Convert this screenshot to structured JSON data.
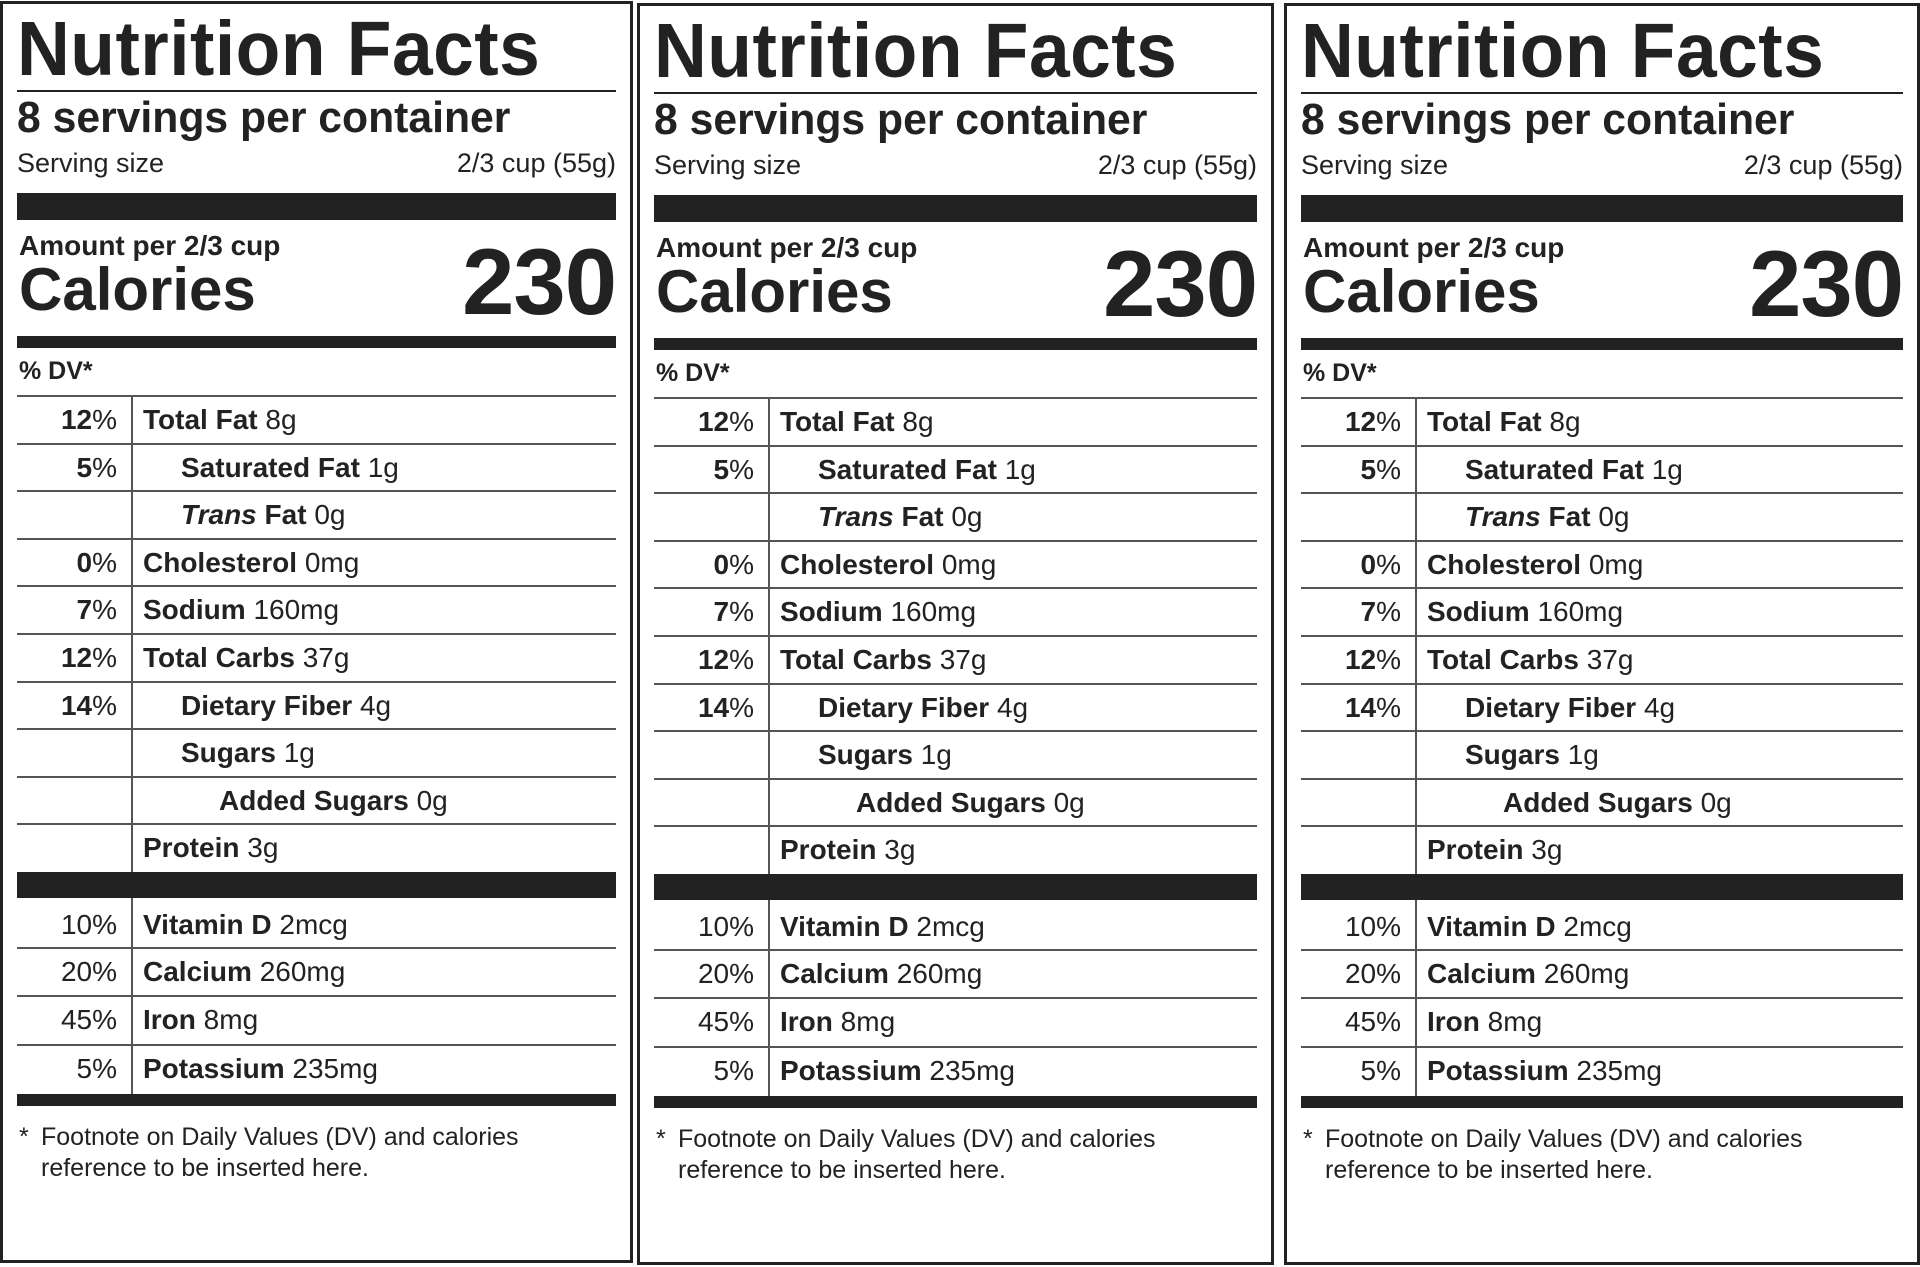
{
  "labels": [
    {
      "title": "Nutrition Facts",
      "servings_per_container": "8 servings per container",
      "serving_size_label": "Serving size",
      "serving_size_value": "2/3 cup (55g)",
      "amount_per": "Amount per 2/3 cup",
      "calories_label": "Calories",
      "calories_value": "230",
      "dv_header": "% DV*",
      "nutrients": [
        {
          "pct": "12",
          "pct_sign": "%",
          "pct_bold": true,
          "name": "Total Fat",
          "amount": "8g",
          "indent": 0
        },
        {
          "pct": "5",
          "pct_sign": "%",
          "pct_bold": true,
          "name": "Saturated Fat",
          "amount": "1g",
          "indent": 1
        },
        {
          "pct": "",
          "pct_sign": "",
          "pct_bold": true,
          "name_italic": "Trans",
          "name": "Fat",
          "amount": "0g",
          "indent": 1
        },
        {
          "pct": "0",
          "pct_sign": "%",
          "pct_bold": true,
          "name": "Cholesterol",
          "amount": "0mg",
          "indent": 0
        },
        {
          "pct": "7",
          "pct_sign": "%",
          "pct_bold": true,
          "name": "Sodium",
          "amount": "160mg",
          "indent": 0
        },
        {
          "pct": "12",
          "pct_sign": "%",
          "pct_bold": true,
          "name": "Total Carbs",
          "amount": "37g",
          "indent": 0
        },
        {
          "pct": "14",
          "pct_sign": "%",
          "pct_bold": true,
          "name": "Dietary Fiber",
          "amount": "4g",
          "indent": 1
        },
        {
          "pct": "",
          "pct_sign": "",
          "pct_bold": true,
          "name": "Sugars",
          "amount": "1g",
          "indent": 1
        },
        {
          "pct": "",
          "pct_sign": "",
          "pct_bold": true,
          "name": "Added Sugars",
          "amount": "0g",
          "indent": 2
        },
        {
          "pct": "",
          "pct_sign": "",
          "pct_bold": true,
          "name": "Protein",
          "amount": "3g",
          "indent": 0
        }
      ],
      "vitamins": [
        {
          "pct": "10%",
          "name": "Vitamin D",
          "amount": "2mcg"
        },
        {
          "pct": "20%",
          "name": "Calcium",
          "amount": "260mg"
        },
        {
          "pct": "45%",
          "name": "Iron",
          "amount": "8mg"
        },
        {
          "pct": "5%",
          "name": "Potassium",
          "amount": "235mg"
        }
      ],
      "footnote_marker": "*",
      "footnote": "Footnote on Daily Values (DV) and calories reference to be inserted here."
    },
    {
      "title": "Nutrition Facts",
      "servings_per_container": "8 servings per container",
      "serving_size_label": "Serving size",
      "serving_size_value": "2/3 cup (55g)",
      "amount_per": "Amount per 2/3 cup",
      "calories_label": "Calories",
      "calories_value": "230",
      "dv_header": "% DV*",
      "nutrients": [
        {
          "pct": "12",
          "pct_sign": "%",
          "name": "Total Fat",
          "amount": "8g",
          "indent": 0
        },
        {
          "pct": "5",
          "pct_sign": "%",
          "name": "Saturated Fat",
          "amount": "1g",
          "indent": 1
        },
        {
          "pct": "",
          "pct_sign": "",
          "name_italic": "Trans",
          "name": "Fat",
          "amount": "0g",
          "indent": 1
        },
        {
          "pct": "0",
          "pct_sign": "%",
          "name": "Cholesterol",
          "amount": "0mg",
          "indent": 0
        },
        {
          "pct": "7",
          "pct_sign": "%",
          "name": "Sodium",
          "amount": "160mg",
          "indent": 0
        },
        {
          "pct": "12",
          "pct_sign": "%",
          "name": "Total Carbs",
          "amount": "37g",
          "indent": 0
        },
        {
          "pct": "14",
          "pct_sign": "%",
          "name": "Dietary Fiber",
          "amount": "4g",
          "indent": 1
        },
        {
          "pct": "",
          "pct_sign": "",
          "name": "Sugars",
          "amount": "1g",
          "indent": 1
        },
        {
          "pct": "",
          "pct_sign": "",
          "name": "Added Sugars",
          "amount": "0g",
          "indent": 2
        },
        {
          "pct": "",
          "pct_sign": "",
          "name": "Protein",
          "amount": "3g",
          "indent": 0
        }
      ],
      "vitamins": [
        {
          "pct": "10%",
          "name": "Vitamin D",
          "amount": "2mcg"
        },
        {
          "pct": "20%",
          "name": "Calcium",
          "amount": "260mg"
        },
        {
          "pct": "45%",
          "name": "Iron",
          "amount": "8mg"
        },
        {
          "pct": "5%",
          "name": "Potassium",
          "amount": "235mg"
        }
      ],
      "footnote_marker": "*",
      "footnote": "Footnote on Daily Values (DV) and calories reference to be inserted here."
    },
    {
      "title": "Nutrition Facts",
      "servings_per_container": "8 servings per container",
      "serving_size_label": "Serving size",
      "serving_size_value": "2/3 cup (55g)",
      "amount_per": "Amount per 2/3 cup",
      "calories_label": "Calories",
      "calories_value": "230",
      "dv_header": "% DV*",
      "nutrients": [
        {
          "pct": "12",
          "pct_sign": "%",
          "name": "Total Fat",
          "amount": "8g",
          "indent": 0
        },
        {
          "pct": "5",
          "pct_sign": "%",
          "name": "Saturated Fat",
          "amount": "1g",
          "indent": 1
        },
        {
          "pct": "",
          "pct_sign": "",
          "name_italic": "Trans",
          "name": "Fat",
          "amount": "0g",
          "indent": 1
        },
        {
          "pct": "0",
          "pct_sign": "%",
          "name": "Cholesterol",
          "amount": "0mg",
          "indent": 0
        },
        {
          "pct": "7",
          "pct_sign": "%",
          "name": "Sodium",
          "amount": "160mg",
          "indent": 0
        },
        {
          "pct": "12",
          "pct_sign": "%",
          "name": "Total Carbs",
          "amount": "37g",
          "indent": 0
        },
        {
          "pct": "14",
          "pct_sign": "%",
          "name": "Dietary Fiber",
          "amount": "4g",
          "indent": 1
        },
        {
          "pct": "",
          "pct_sign": "",
          "name": "Sugars",
          "amount": "1g",
          "indent": 1
        },
        {
          "pct": "",
          "pct_sign": "",
          "name": "Added Sugars",
          "amount": "0g",
          "indent": 2
        },
        {
          "pct": "",
          "pct_sign": "",
          "name": "Protein",
          "amount": "3g",
          "indent": 0
        }
      ],
      "vitamins": [
        {
          "pct": "10%",
          "name": "Vitamin D",
          "amount": "2mcg"
        },
        {
          "pct": "20%",
          "name": "Calcium",
          "amount": "260mg"
        },
        {
          "pct": "45%",
          "name": "Iron",
          "amount": "8mg"
        },
        {
          "pct": "5%",
          "name": "Potassium",
          "amount": "235mg"
        }
      ],
      "footnote_marker": "*",
      "footnote": "Footnote on Daily Values (DV) and calories reference to be inserted here."
    }
  ],
  "colors": {
    "ink": "#222222",
    "rule": "#555555",
    "background": "#ffffff"
  }
}
